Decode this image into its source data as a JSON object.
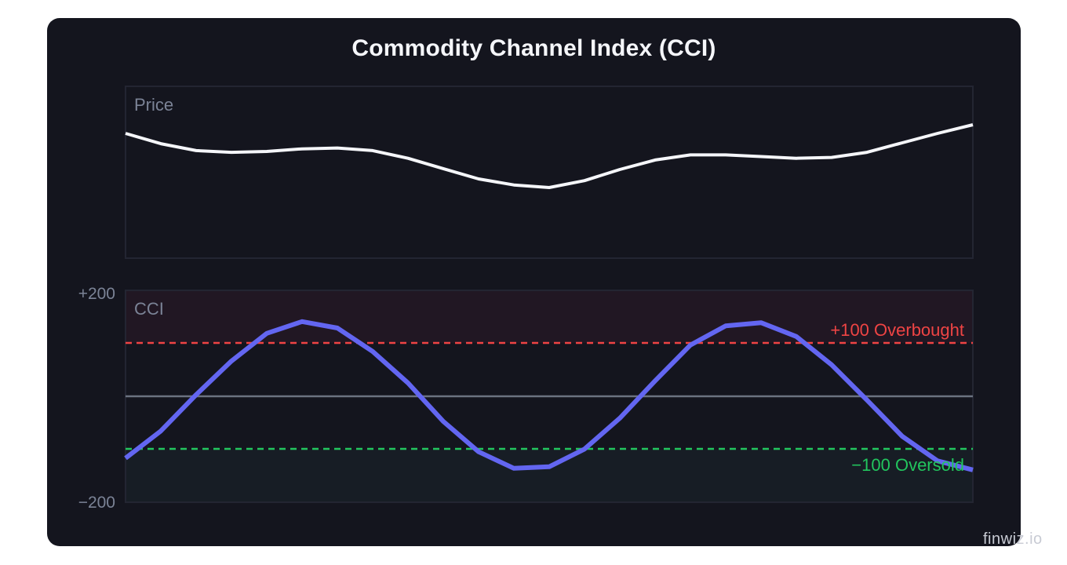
{
  "title": "Commodity Channel Index (CCI)",
  "watermark": "finwiz.io",
  "panels": {
    "price": {
      "label": "Price"
    },
    "cci": {
      "label": "CCI",
      "y_top_label": "+200",
      "y_bottom_label": "−200",
      "overbought_label": "+100 Overbought",
      "oversold_label": "−100 Oversold"
    }
  },
  "colors": {
    "background": "#14151e",
    "price_line": "#f5f6fa",
    "cci_line": "#6366f1",
    "overbought": "#ef4444",
    "oversold": "#22c55e",
    "zero_line": "#6b7280",
    "panel_border": "#232532",
    "label": "#7b8396"
  },
  "chart_data": [
    {
      "type": "line",
      "title": "Price",
      "xlabel": "",
      "ylabel": "",
      "x": [
        1,
        2,
        3,
        4,
        5,
        6,
        7,
        8,
        9,
        10,
        11,
        12,
        13,
        14,
        15,
        16,
        17,
        18,
        19,
        20,
        21,
        22,
        23,
        24,
        25
      ],
      "series": [
        {
          "name": "Price",
          "values": [
            70,
            64,
            60,
            59,
            59.5,
            61,
            61.5,
            60,
            55.5,
            49.5,
            43.5,
            40,
            38.5,
            42.5,
            49,
            54.5,
            57.5,
            57.5,
            56.5,
            55.5,
            56,
            59,
            64.5,
            70,
            75
          ]
        }
      ],
      "grid": false,
      "legend": "none"
    },
    {
      "type": "line",
      "title": "CCI",
      "xlabel": "",
      "ylabel": "",
      "ylim": [
        -200,
        200
      ],
      "yticks": [
        "+200",
        "−200"
      ],
      "x": [
        1,
        2,
        3,
        4,
        5,
        6,
        7,
        8,
        9,
        10,
        11,
        12,
        13,
        14,
        15,
        16,
        17,
        18,
        19,
        20,
        21,
        22,
        23,
        24,
        25
      ],
      "series": [
        {
          "name": "CCI",
          "values": [
            -116,
            -65,
            3,
            66,
            118,
            140,
            128,
            84,
            25,
            -47,
            -104,
            -135,
            -132,
            -99,
            -41,
            29,
            96,
            132,
            138,
            112,
            59,
            -7,
            -75,
            -121,
            -138
          ]
        }
      ],
      "reference_lines": [
        {
          "value": 100,
          "label": "+100 Overbought",
          "style": "dashed",
          "color": "#ef4444"
        },
        {
          "value": 0,
          "label": "",
          "style": "solid",
          "color": "#6b7280"
        },
        {
          "value": -100,
          "label": "−100 Oversold",
          "style": "dashed",
          "color": "#22c55e"
        }
      ],
      "shaded_zones": [
        {
          "from": 100,
          "to": 200,
          "name": "overbought-zone"
        },
        {
          "from": -200,
          "to": -100,
          "name": "oversold-zone"
        }
      ],
      "grid": false,
      "legend": "none"
    }
  ]
}
